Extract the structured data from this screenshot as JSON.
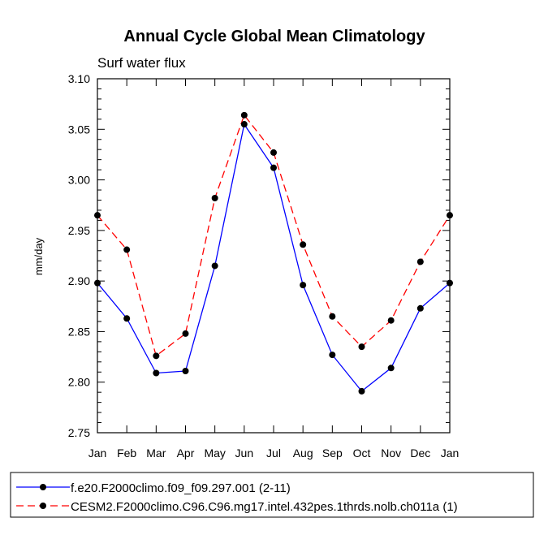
{
  "chart_data": {
    "type": "line",
    "title": "Annual Cycle Global Mean Climatology",
    "subtitle": "Surf water flux",
    "xlabel": "",
    "ylabel": "mm/day",
    "categories": [
      "Jan",
      "Feb",
      "Mar",
      "Apr",
      "May",
      "Jun",
      "Jul",
      "Aug",
      "Sep",
      "Oct",
      "Nov",
      "Dec",
      "Jan"
    ],
    "ylim": [
      2.75,
      3.1
    ],
    "yticks": [
      2.75,
      2.8,
      2.85,
      2.9,
      2.95,
      3.0,
      3.05,
      3.1
    ],
    "ytick_labels": [
      "2.75",
      "2.80",
      "2.85",
      "2.90",
      "2.95",
      "3.00",
      "3.05",
      "3.10"
    ],
    "series": [
      {
        "name": "f.e20.F2000climo.f09_f09.297.001 (2-11)",
        "color": "#0000ff",
        "style": "solid",
        "values": [
          2.898,
          2.863,
          2.809,
          2.811,
          2.915,
          3.055,
          3.012,
          2.896,
          2.827,
          2.791,
          2.814,
          2.873,
          2.898
        ]
      },
      {
        "name": "CESM2.F2000climo.C96.C96.mg17.intel.432pes.1thrds.nolb.ch011a (1)",
        "color": "#ff0000",
        "style": "dashed",
        "values": [
          2.965,
          2.931,
          2.826,
          2.848,
          2.982,
          3.064,
          3.027,
          2.936,
          2.865,
          2.835,
          2.861,
          2.919,
          2.965
        ]
      }
    ],
    "legend_position": "bottom"
  }
}
